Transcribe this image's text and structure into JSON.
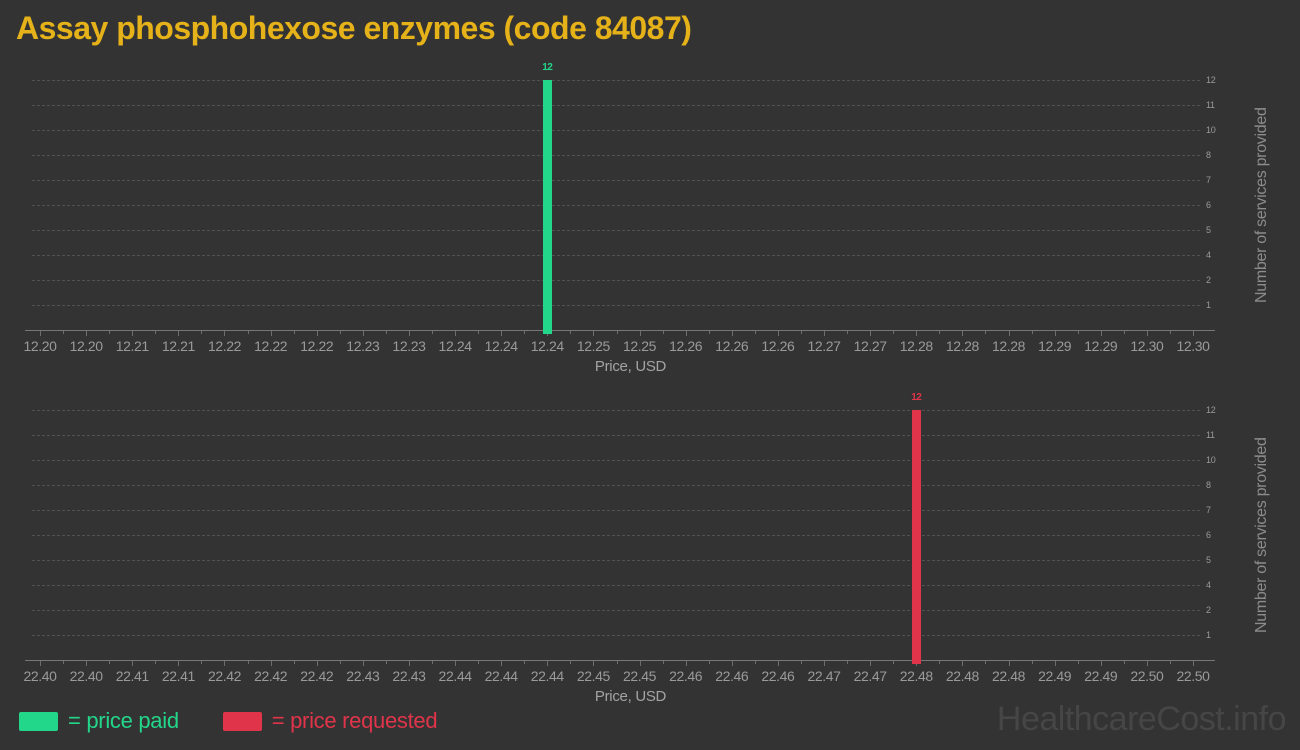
{
  "title": "Assay phosphohexose enzymes (code 84087)",
  "watermark": "HealthcareCost.info",
  "colors": {
    "background": "#333333",
    "title": "#e6b219",
    "price_paid": "#22d68a",
    "price_requested": "#e0344a",
    "axis_text": "#9a9a9a",
    "gridline": "#515151",
    "watermark": "#464646"
  },
  "legend": [
    {
      "label": "= price paid",
      "color_key": "price_paid"
    },
    {
      "label": "= price requested",
      "color_key": "price_requested"
    }
  ],
  "chart_data": [
    {
      "type": "bar",
      "name": "price-paid",
      "series_name": "price paid",
      "categories": [
        "12.20",
        "12.20",
        "12.21",
        "12.21",
        "12.22",
        "12.22",
        "12.22",
        "12.23",
        "12.23",
        "12.24",
        "12.24",
        "12.24",
        "12.25",
        "12.25",
        "12.26",
        "12.26",
        "12.26",
        "12.27",
        "12.27",
        "12.28",
        "12.28",
        "12.28",
        "12.29",
        "12.29",
        "12.30",
        "12.30"
      ],
      "values": [
        0,
        0,
        0,
        0,
        0,
        0,
        0,
        0,
        0,
        0,
        0,
        12,
        0,
        0,
        0,
        0,
        0,
        0,
        0,
        0,
        0,
        0,
        0,
        0,
        0,
        0
      ],
      "bar_value_label": "12",
      "xlabel": "Price, USD",
      "ylabel": "Number of services provided",
      "ylim": [
        0,
        12
      ],
      "yticks": {
        "values": [
          1.2,
          2.4,
          3.6,
          4.8,
          6,
          7.2,
          8.4,
          9.6,
          10.8,
          12
        ],
        "labels": [
          "1",
          "2",
          "4",
          "5",
          "6",
          "7",
          "8",
          "10",
          "11",
          "12"
        ]
      },
      "grid": "dashed horizontal",
      "bar_color_key": "price_paid"
    },
    {
      "type": "bar",
      "name": "price-requested",
      "series_name": "price requested",
      "categories": [
        "22.40",
        "22.40",
        "22.41",
        "22.41",
        "22.42",
        "22.42",
        "22.42",
        "22.43",
        "22.43",
        "22.44",
        "22.44",
        "22.44",
        "22.45",
        "22.45",
        "22.46",
        "22.46",
        "22.46",
        "22.47",
        "22.47",
        "22.48",
        "22.48",
        "22.48",
        "22.49",
        "22.49",
        "22.50",
        "22.50"
      ],
      "values": [
        0,
        0,
        0,
        0,
        0,
        0,
        0,
        0,
        0,
        0,
        0,
        0,
        0,
        0,
        0,
        0,
        0,
        0,
        0,
        12,
        0,
        0,
        0,
        0,
        0,
        0
      ],
      "bar_value_label": "12",
      "xlabel": "Price, USD",
      "ylabel": "Number of services provided",
      "ylim": [
        0,
        12
      ],
      "yticks": {
        "values": [
          1.2,
          2.4,
          3.6,
          4.8,
          6,
          7.2,
          8.4,
          9.6,
          10.8,
          12
        ],
        "labels": [
          "1",
          "2",
          "4",
          "5",
          "6",
          "7",
          "8",
          "10",
          "11",
          "12"
        ]
      },
      "grid": "dashed horizontal",
      "bar_color_key": "price_requested"
    }
  ]
}
